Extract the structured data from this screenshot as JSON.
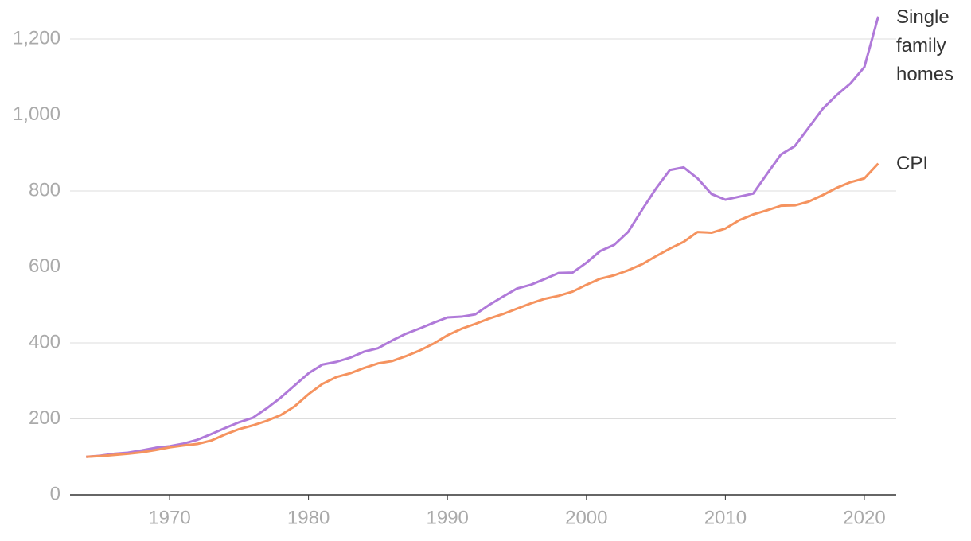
{
  "chart_data": {
    "type": "line",
    "x": [
      1964,
      1965,
      1966,
      1967,
      1968,
      1969,
      1970,
      1971,
      1972,
      1973,
      1974,
      1975,
      1976,
      1977,
      1978,
      1979,
      1980,
      1981,
      1982,
      1983,
      1984,
      1985,
      1986,
      1987,
      1988,
      1989,
      1990,
      1991,
      1992,
      1993,
      1994,
      1995,
      1996,
      1997,
      1998,
      1999,
      2000,
      2001,
      2002,
      2003,
      2004,
      2005,
      2006,
      2007,
      2008,
      2009,
      2010,
      2011,
      2012,
      2013,
      2014,
      2015,
      2016,
      2017,
      2018,
      2019,
      2020,
      2021
    ],
    "series": [
      {
        "name": "Single family homes",
        "color": "#b07ad9",
        "values": [
          100,
          103,
          108,
          111,
          117,
          124,
          128,
          135,
          145,
          160,
          176,
          191,
          203,
          228,
          256,
          288,
          320,
          343,
          350,
          361,
          377,
          386,
          406,
          424,
          438,
          453,
          467,
          469,
          475,
          500,
          522,
          543,
          553,
          568,
          584,
          585,
          611,
          642,
          658,
          692,
          750,
          806,
          855,
          862,
          833,
          792,
          777,
          785,
          793,
          845,
          896,
          918,
          967,
          1016,
          1052,
          1083,
          1126,
          1259
        ]
      },
      {
        "name": "CPI",
        "color": "#f5935f",
        "values": [
          100,
          102,
          105,
          108,
          112,
          118,
          125,
          130,
          134,
          143,
          159,
          173,
          183,
          195,
          210,
          233,
          265,
          292,
          310,
          320,
          334,
          346,
          352,
          365,
          380,
          398,
          420,
          437,
          450,
          464,
          476,
          490,
          504,
          516,
          524,
          535,
          553,
          569,
          578,
          591,
          607,
          628,
          648,
          666,
          692,
          690,
          701,
          723,
          738,
          749,
          761,
          762,
          772,
          789,
          808,
          823,
          833,
          872
        ]
      }
    ],
    "xlim": [
      1963,
      2022
    ],
    "xticks": [
      1970,
      1980,
      1990,
      2000,
      2010,
      2020
    ],
    "ylim": [
      0,
      1300
    ],
    "yticks": [
      0,
      200,
      400,
      600,
      800,
      {
        "value": 1000,
        "label": "1,000"
      },
      {
        "value": 1200,
        "label": "1,200"
      }
    ],
    "grid": true
  }
}
